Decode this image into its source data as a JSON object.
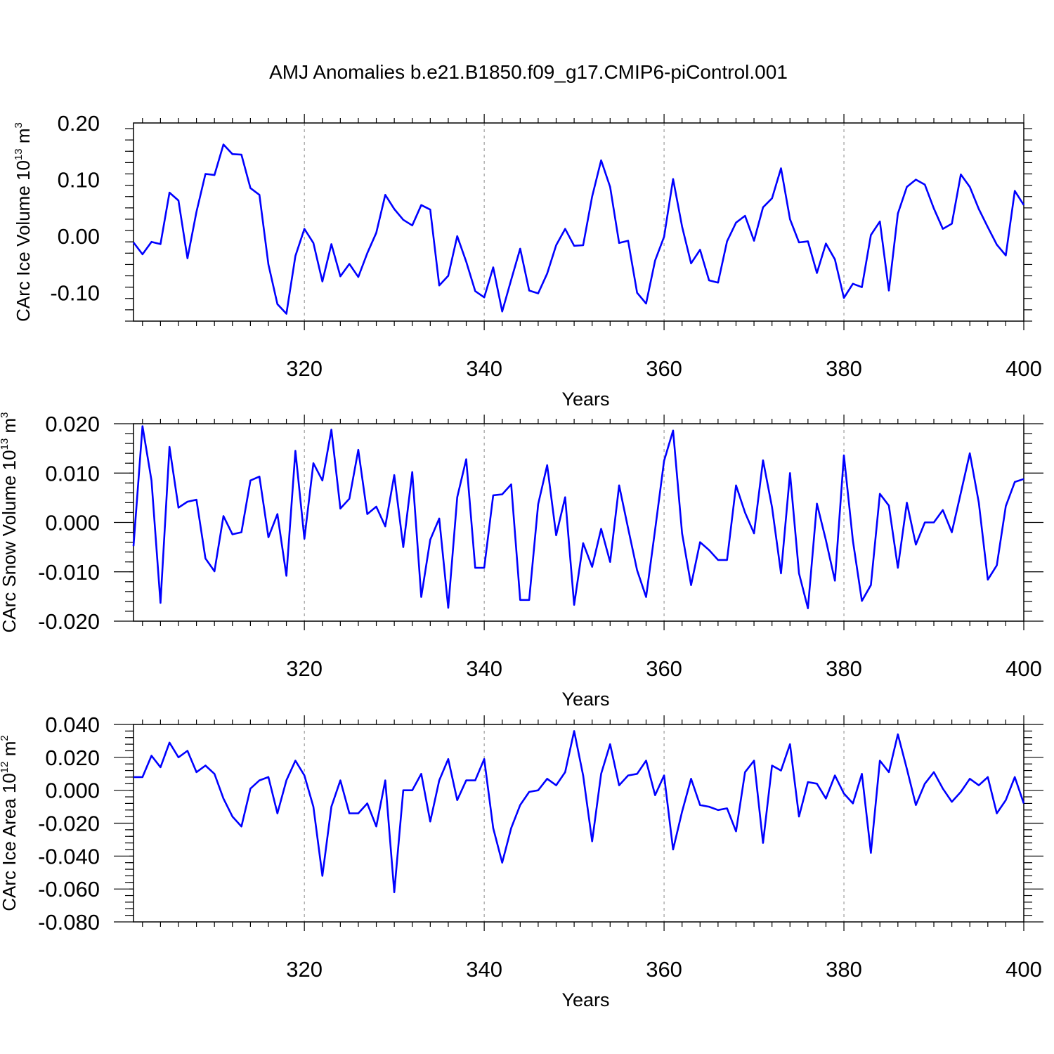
{
  "title": "AMJ Anomalies b.e21.B1850.f09_g17.CMIP6-piControl.001",
  "colors": {
    "series": "#0000ff",
    "axis": "#000000",
    "grid": "#888888"
  },
  "chart_data": [
    {
      "type": "line",
      "ylabel": {
        "text": "CArc Ice Volume 10",
        "exp": "13",
        "unit": " m",
        "unit_exp": "3"
      },
      "xlabel": "Years",
      "xlim": [
        301,
        400
      ],
      "ylim": [
        -0.15,
        0.2
      ],
      "xticks": [
        320,
        340,
        360,
        380,
        400
      ],
      "xtick_labels": [
        "320",
        "340",
        "360",
        "380",
        "400"
      ],
      "yticks": [
        -0.1,
        0.0,
        0.1,
        0.2
      ],
      "ytick_labels": [
        "-0.10",
        "0.00",
        "0.10",
        "0.20"
      ],
      "grid_x": "dashed vertical at major x ticks",
      "series": [
        {
          "x_start": 301,
          "values": [
            -0.011,
            -0.032,
            -0.01,
            -0.014,
            0.077,
            0.063,
            -0.039,
            0.043,
            0.11,
            0.108,
            0.162,
            0.145,
            0.144,
            0.085,
            0.073,
            -0.05,
            -0.12,
            -0.137,
            -0.035,
            0.013,
            -0.012,
            -0.08,
            -0.014,
            -0.071,
            -0.049,
            -0.072,
            -0.03,
            0.006,
            0.073,
            0.048,
            0.029,
            0.019,
            0.055,
            0.047,
            -0.087,
            -0.07,
            0.0,
            -0.045,
            -0.097,
            -0.108,
            -0.055,
            -0.133,
            -0.077,
            -0.022,
            -0.096,
            -0.101,
            -0.066,
            -0.016,
            0.013,
            -0.017,
            -0.016,
            0.07,
            0.134,
            0.087,
            -0.012,
            -0.008,
            -0.1,
            -0.119,
            -0.043,
            -0.001,
            0.101,
            0.017,
            -0.048,
            -0.024,
            -0.078,
            -0.082,
            -0.009,
            0.024,
            0.036,
            -0.008,
            0.051,
            0.067,
            0.12,
            0.03,
            -0.011,
            -0.009,
            -0.065,
            -0.013,
            -0.041,
            -0.109,
            -0.084,
            -0.09,
            0.002,
            0.026,
            -0.096,
            0.04,
            0.087,
            0.1,
            0.091,
            0.049,
            0.013,
            0.022,
            0.109,
            0.087,
            0.048,
            0.016,
            -0.015,
            -0.034,
            0.08,
            0.055
          ]
        }
      ]
    },
    {
      "type": "line",
      "ylabel": {
        "text": "CArc Snow Volume 10",
        "exp": "13",
        "unit": " m",
        "unit_exp": "3"
      },
      "xlabel": "Years",
      "xlim": [
        301,
        400
      ],
      "ylim": [
        -0.02,
        0.02
      ],
      "xticks": [
        320,
        340,
        360,
        380,
        400
      ],
      "xtick_labels": [
        "320",
        "340",
        "360",
        "380",
        "400"
      ],
      "yticks": [
        -0.02,
        -0.01,
        0.0,
        0.01,
        0.02
      ],
      "ytick_labels": [
        "-0.020",
        "-0.010",
        "0.000",
        "0.010",
        "0.020"
      ],
      "grid_x": "dashed vertical at major x ticks",
      "series": [
        {
          "x_start": 301,
          "values": [
            -0.0048,
            0.0195,
            0.0085,
            -0.0163,
            0.0153,
            0.003,
            0.0042,
            0.0046,
            -0.0073,
            -0.0099,
            0.0013,
            -0.0024,
            -0.002,
            0.0085,
            0.0093,
            -0.003,
            0.0017,
            -0.0108,
            0.0145,
            -0.0033,
            0.012,
            0.0085,
            0.0188,
            0.0028,
            0.0048,
            0.0147,
            0.0017,
            0.0032,
            -0.0008,
            0.0096,
            -0.005,
            0.0102,
            -0.0151,
            -0.0035,
            0.0008,
            -0.0173,
            0.0051,
            0.0128,
            -0.0092,
            -0.0092,
            0.0055,
            0.0057,
            0.0077,
            -0.0157,
            -0.0157,
            0.0037,
            0.0116,
            -0.0026,
            0.0051,
            -0.0167,
            -0.0042,
            -0.009,
            -0.0013,
            -0.008,
            0.0075,
            -0.0012,
            -0.0097,
            -0.0151,
            -0.0015,
            0.0125,
            0.0186,
            -0.0022,
            -0.0127,
            -0.004,
            -0.0056,
            -0.0076,
            -0.0076,
            0.0075,
            0.002,
            -0.0022,
            0.0126,
            0.0031,
            -0.0103,
            0.01,
            -0.0103,
            -0.0174,
            0.0038,
            -0.0036,
            -0.0118,
            0.0136,
            -0.0037,
            -0.0159,
            -0.0127,
            0.0058,
            0.0034,
            -0.0092,
            0.004,
            -0.0045,
            0.0,
            0.0,
            0.0025,
            -0.002,
            0.006,
            0.014,
            0.004,
            -0.0116,
            -0.0087,
            0.0033,
            0.0082,
            0.0088
          ]
        }
      ]
    },
    {
      "type": "line",
      "ylabel": {
        "text": "CArc Ice Area 10",
        "exp": "12",
        "unit": " m",
        "unit_exp": "2"
      },
      "xlabel": "Years",
      "xlim": [
        301,
        400
      ],
      "ylim": [
        -0.08,
        0.04
      ],
      "xticks": [
        320,
        340,
        360,
        380,
        400
      ],
      "xtick_labels": [
        "320",
        "340",
        "360",
        "380",
        "400"
      ],
      "yticks": [
        -0.08,
        -0.06,
        -0.04,
        -0.02,
        0.0,
        0.02,
        0.04
      ],
      "ytick_labels": [
        "-0.080",
        "-0.060",
        "-0.040",
        "-0.020",
        "0.000",
        "0.020",
        "0.040"
      ],
      "grid_x": "dashed vertical at major x ticks",
      "series": [
        {
          "x_start": 301,
          "values": [
            0.008,
            0.008,
            0.021,
            0.014,
            0.029,
            0.02,
            0.024,
            0.011,
            0.015,
            0.01,
            -0.005,
            -0.016,
            -0.022,
            0.001,
            0.006,
            0.008,
            -0.014,
            0.006,
            0.018,
            0.009,
            -0.01,
            -0.052,
            -0.01,
            0.006,
            -0.014,
            -0.014,
            -0.008,
            -0.022,
            0.006,
            -0.062,
            0.0,
            0.0,
            0.01,
            -0.019,
            0.006,
            0.019,
            -0.006,
            0.006,
            0.006,
            0.019,
            -0.023,
            -0.044,
            -0.023,
            -0.009,
            -0.001,
            0.0,
            0.007,
            0.003,
            0.011,
            0.036,
            0.009,
            -0.031,
            0.01,
            0.028,
            0.003,
            0.009,
            0.01,
            0.018,
            -0.003,
            0.009,
            -0.036,
            -0.013,
            0.007,
            -0.009,
            -0.01,
            -0.012,
            -0.011,
            -0.025,
            0.011,
            0.018,
            -0.032,
            0.015,
            0.012,
            0.028,
            -0.016,
            0.005,
            0.004,
            -0.005,
            0.009,
            -0.002,
            -0.008,
            0.01,
            -0.038,
            0.018,
            0.011,
            0.034,
            0.013,
            -0.009,
            0.004,
            0.011,
            0.001,
            -0.007,
            -0.001,
            0.007,
            0.003,
            0.008,
            -0.014,
            -0.006,
            0.008,
            -0.008
          ]
        }
      ]
    }
  ]
}
